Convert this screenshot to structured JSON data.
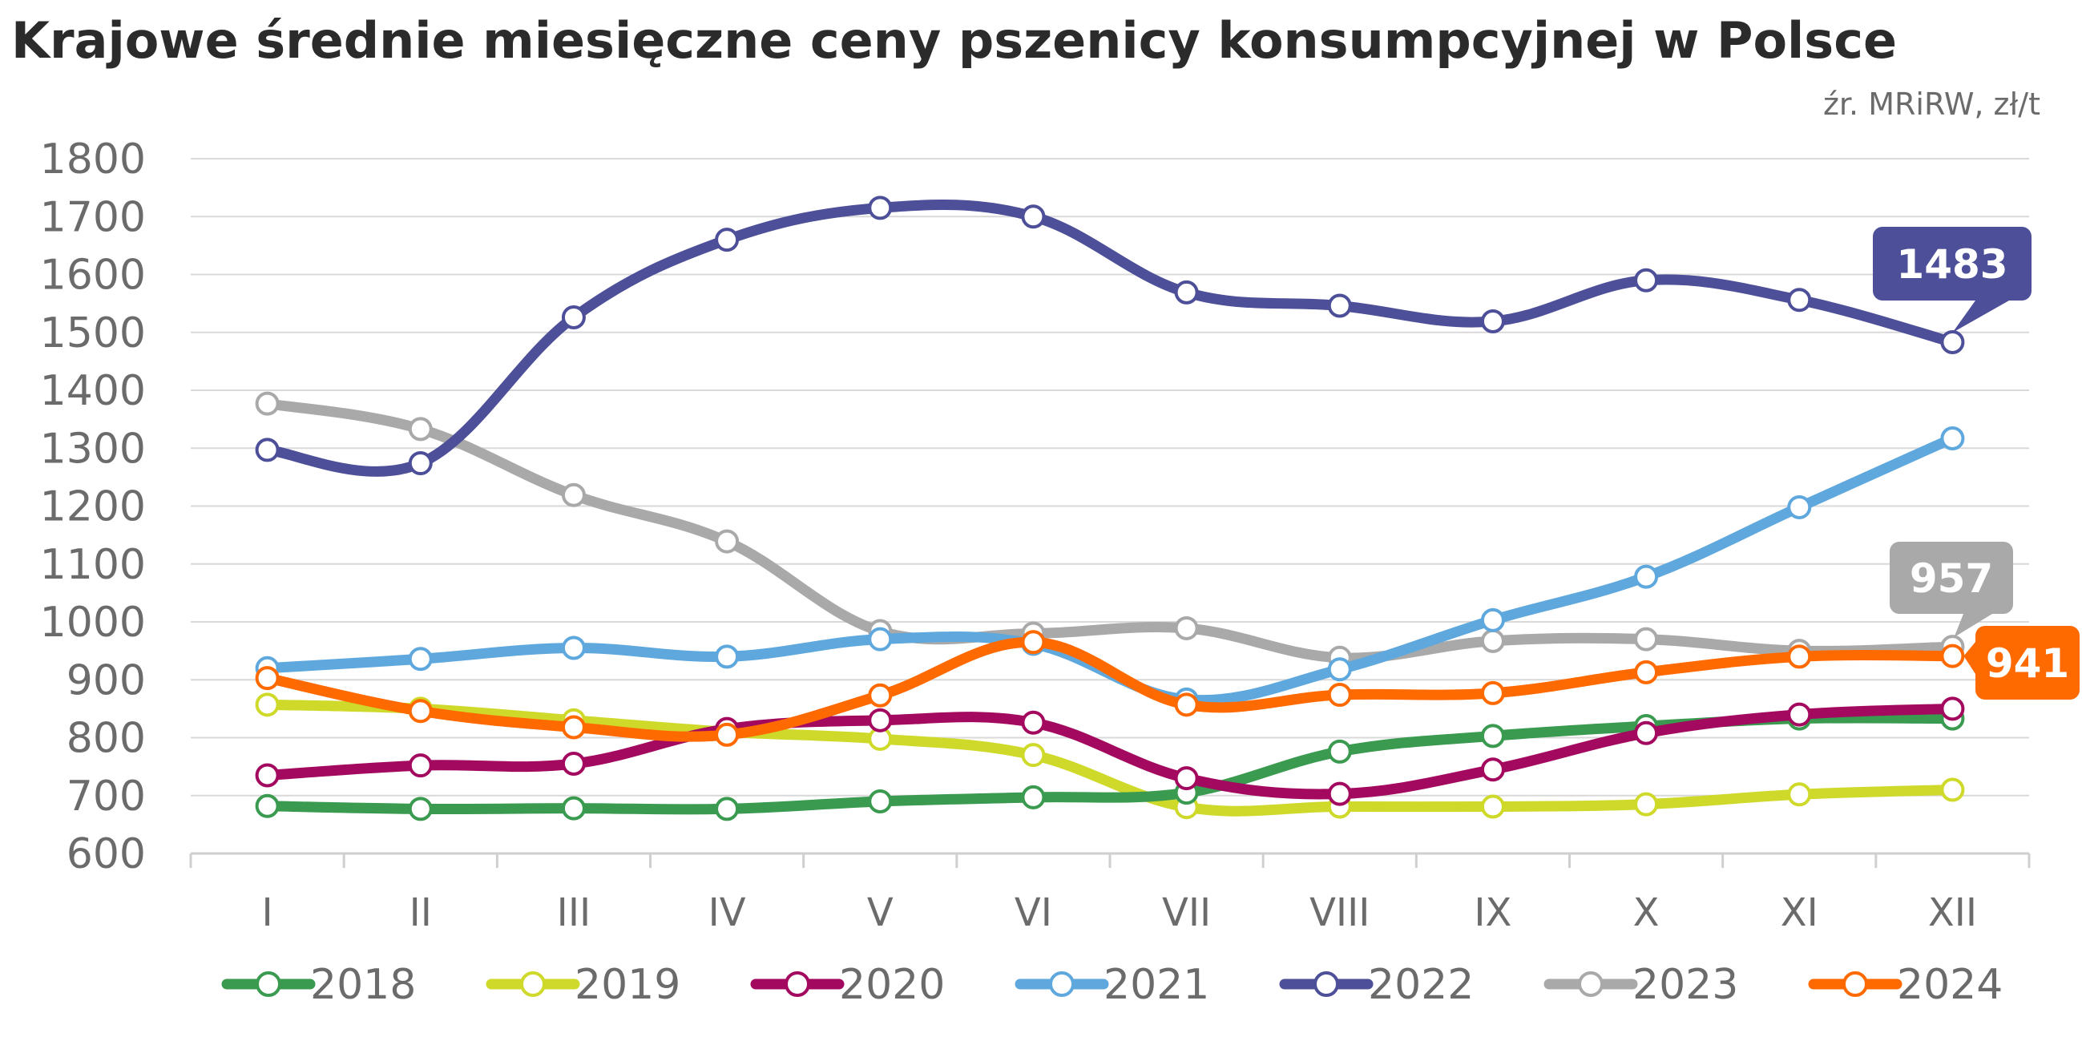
{
  "title": "Krajowe średnie miesięczne ceny pszenicy konsumpcyjnej w Polsce",
  "source": "źr. MRiRW, zł/t",
  "chart_data": {
    "type": "line",
    "title": "Krajowe średnie miesięczne ceny pszenicy konsumpcyjnej w Polsce",
    "ylabel": "zł/t",
    "xlabel": "",
    "ylim": [
      600,
      1800
    ],
    "yticks": [
      "600",
      "700",
      "800",
      "900",
      "1000",
      "1100",
      "1200",
      "1300",
      "1400",
      "1500",
      "1600",
      "1700",
      "1800"
    ],
    "categories": [
      "I",
      "II",
      "III",
      "IV",
      "V",
      "VI",
      "VII",
      "VIII",
      "IX",
      "X",
      "XI",
      "XII"
    ],
    "grid": true,
    "legend": "bottom",
    "series": [
      {
        "name": "2018",
        "color": "#3a9a4f",
        "values": [
          682,
          677,
          678,
          677,
          690,
          697,
          705,
          776,
          803,
          820,
          833,
          833
        ]
      },
      {
        "name": "2019",
        "color": "#cfd92a",
        "values": [
          857,
          850,
          830,
          810,
          798,
          770,
          680,
          681,
          681,
          685,
          702,
          710
        ]
      },
      {
        "name": "2020",
        "color": "#a3095e",
        "values": [
          735,
          752,
          755,
          815,
          830,
          826,
          730,
          703,
          745,
          808,
          840,
          850
        ]
      },
      {
        "name": "2021",
        "color": "#5fa8de",
        "values": [
          920,
          936,
          955,
          940,
          970,
          962,
          866,
          918,
          1003,
          1078,
          1198,
          1317
        ]
      },
      {
        "name": "2022",
        "color": "#4e4f99",
        "values": [
          1297,
          1274,
          1526,
          1660,
          1715,
          1700,
          1569,
          1546,
          1519,
          1590,
          1556,
          1483
        ]
      },
      {
        "name": "2023",
        "color": "#a9a9a9",
        "values": [
          1377,
          1333,
          1219,
          1139,
          984,
          980,
          989,
          938,
          967,
          970,
          950,
          957
        ]
      },
      {
        "name": "2024",
        "color": "#ff6a00",
        "values": [
          903,
          846,
          818,
          805,
          873,
          965,
          857,
          874,
          877,
          913,
          940,
          941
        ]
      }
    ],
    "callouts": [
      {
        "series": "2022",
        "label": "1483",
        "color": "#4e4f99"
      },
      {
        "series": "2023",
        "label": "957",
        "color": "#a9a9a9"
      },
      {
        "series": "2024",
        "label": "941",
        "color": "#ff6a00"
      }
    ]
  }
}
